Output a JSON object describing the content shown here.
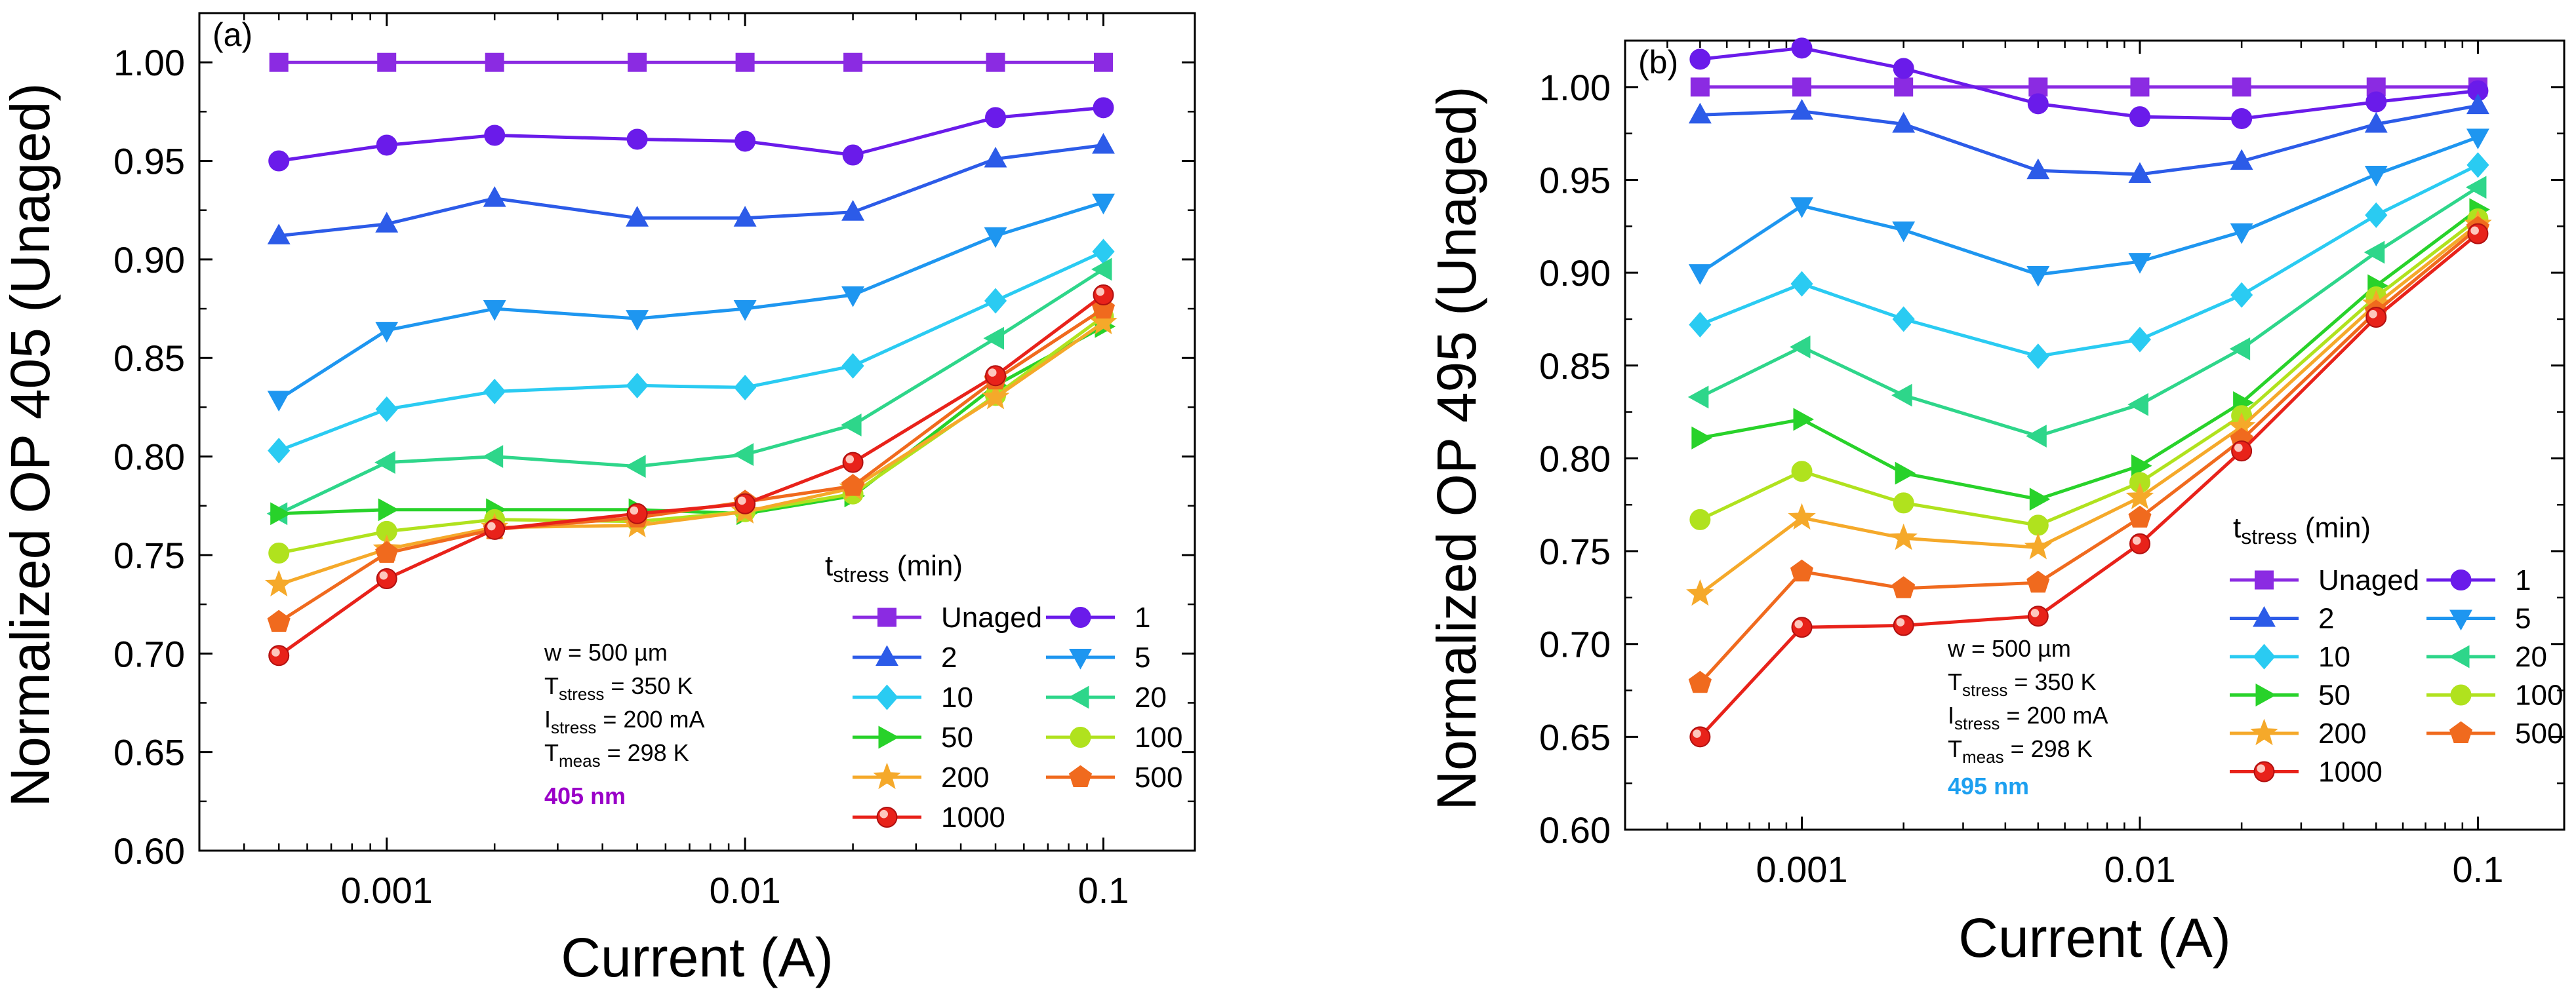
{
  "chart_data": [
    {
      "panel_label": "(a)",
      "type": "line",
      "xscale": "log",
      "xlim": [
        0.0003,
        0.18
      ],
      "ylim": [
        0.6,
        1.025
      ],
      "xlabel": "Current (A)",
      "ylabel": "Normalized OP 405 (Unaged)",
      "x_ticks": [
        0.001,
        0.01,
        0.1
      ],
      "x_tick_labels": [
        "0.001",
        "0.01",
        "0.1"
      ],
      "y_ticks": [
        0.6,
        0.65,
        0.7,
        0.75,
        0.8,
        0.85,
        0.9,
        0.95,
        1.0
      ],
      "y_tick_labels": [
        "0.60",
        "0.65",
        "0.70",
        "0.75",
        "0.80",
        "0.85",
        "0.90",
        "0.95",
        "1.00"
      ],
      "x": [
        0.0005,
        0.001,
        0.002,
        0.005,
        0.01,
        0.02,
        0.05,
        0.1
      ],
      "legend_title_main": "t",
      "legend_title_sub": "stress",
      "legend_title_unit": " (min)",
      "legend_position": "bottom-right",
      "annotation_lines": [
        {
          "main": "w = 500 µm",
          "sub": "",
          "rest": ""
        },
        {
          "main": "T",
          "sub": "stress",
          "rest": " = 350 K"
        },
        {
          "main": "I",
          "sub": "stress",
          "rest": " = 200 mA"
        },
        {
          "main": "T",
          "sub": "meas",
          "rest": " = 298 K"
        }
      ],
      "wavelength_label": "405 nm",
      "wavelength_color": "#9A00C8",
      "series": [
        {
          "name": "Unaged",
          "color": "#8B2BE2",
          "marker": "square",
          "values": [
            1.0,
            1.0,
            1.0,
            1.0,
            1.0,
            1.0,
            1.0,
            1.0
          ]
        },
        {
          "name": "1",
          "color": "#6A1BEA",
          "marker": "circle",
          "values": [
            0.95,
            0.958,
            0.963,
            0.961,
            0.96,
            0.953,
            0.972,
            0.977
          ]
        },
        {
          "name": "2",
          "color": "#2C5BE8",
          "marker": "triangle-up",
          "values": [
            0.912,
            0.918,
            0.931,
            0.921,
            0.921,
            0.924,
            0.951,
            0.958
          ]
        },
        {
          "name": "5",
          "color": "#1E96F0",
          "marker": "triangle-down",
          "values": [
            0.829,
            0.864,
            0.875,
            0.87,
            0.875,
            0.882,
            0.912,
            0.929
          ]
        },
        {
          "name": "10",
          "color": "#2ACBF2",
          "marker": "diamond",
          "values": [
            0.803,
            0.824,
            0.833,
            0.836,
            0.835,
            0.846,
            0.879,
            0.904
          ]
        },
        {
          "name": "20",
          "color": "#2ED68A",
          "marker": "triangle-left",
          "values": [
            0.771,
            0.797,
            0.8,
            0.795,
            0.801,
            0.816,
            0.86,
            0.895
          ]
        },
        {
          "name": "50",
          "color": "#28D22A",
          "marker": "triangle-right",
          "values": [
            0.771,
            0.773,
            0.773,
            0.773,
            0.771,
            0.78,
            0.836,
            0.866
          ]
        },
        {
          "name": "100",
          "color": "#B0E21E",
          "marker": "circle",
          "values": [
            0.751,
            0.762,
            0.768,
            0.767,
            0.772,
            0.781,
            0.831,
            0.871
          ]
        },
        {
          "name": "200",
          "color": "#F5A92A",
          "marker": "star",
          "values": [
            0.735,
            0.753,
            0.764,
            0.765,
            0.772,
            0.784,
            0.83,
            0.868
          ]
        },
        {
          "name": "500",
          "color": "#F06A1E",
          "marker": "pentagon",
          "values": [
            0.716,
            0.751,
            0.763,
            0.769,
            0.777,
            0.785,
            0.839,
            0.875
          ]
        },
        {
          "name": "1000",
          "color": "#E8221A",
          "marker": "ball",
          "values": [
            0.699,
            0.738,
            0.763,
            0.771,
            0.776,
            0.797,
            0.841,
            0.882
          ]
        }
      ]
    },
    {
      "panel_label": "(b)",
      "type": "line",
      "xscale": "log",
      "xlim": [
        0.0003,
        0.18
      ],
      "ylim": [
        0.6,
        1.025
      ],
      "xlabel": "Current (A)",
      "ylabel": "Normalized OP 495 (Unaged)",
      "x_ticks": [
        0.001,
        0.01,
        0.1
      ],
      "x_tick_labels": [
        "0.001",
        "0.01",
        "0.1"
      ],
      "y_ticks": [
        0.6,
        0.65,
        0.7,
        0.75,
        0.8,
        0.85,
        0.9,
        0.95,
        1.0
      ],
      "y_tick_labels": [
        "0.60",
        "0.65",
        "0.70",
        "0.75",
        "0.80",
        "0.85",
        "0.90",
        "0.95",
        "1.00"
      ],
      "x": [
        0.0005,
        0.001,
        0.002,
        0.005,
        0.01,
        0.02,
        0.05,
        0.1
      ],
      "legend_title_main": "t",
      "legend_title_sub": "stress",
      "legend_title_unit": " (min)",
      "legend_position": "right",
      "annotation_lines": [
        {
          "main": "w = 500 µm",
          "sub": "",
          "rest": ""
        },
        {
          "main": "T",
          "sub": "stress",
          "rest": " = 350 K"
        },
        {
          "main": "I",
          "sub": "stress",
          "rest": " = 200 mA"
        },
        {
          "main": "T",
          "sub": "meas",
          "rest": " = 298 K"
        }
      ],
      "wavelength_label": "495 nm",
      "wavelength_color": "#1EA0F0",
      "series": [
        {
          "name": "Unaged",
          "color": "#8B2BE2",
          "marker": "square",
          "values": [
            1.0,
            1.0,
            1.0,
            1.0,
            1.0,
            1.0,
            1.0,
            1.0
          ]
        },
        {
          "name": "1",
          "color": "#6A1BEA",
          "marker": "circle",
          "values": [
            1.015,
            1.021,
            1.01,
            0.991,
            0.984,
            0.983,
            0.992,
            0.998
          ]
        },
        {
          "name": "2",
          "color": "#2C5BE8",
          "marker": "triangle-up",
          "values": [
            0.985,
            0.987,
            0.98,
            0.955,
            0.953,
            0.96,
            0.98,
            0.99
          ]
        },
        {
          "name": "5",
          "color": "#1E96F0",
          "marker": "triangle-down",
          "values": [
            0.9,
            0.936,
            0.923,
            0.899,
            0.906,
            0.922,
            0.953,
            0.973
          ]
        },
        {
          "name": "10",
          "color": "#2ACBF2",
          "marker": "diamond",
          "values": [
            0.872,
            0.894,
            0.875,
            0.855,
            0.864,
            0.888,
            0.931,
            0.958
          ]
        },
        {
          "name": "20",
          "color": "#2ED68A",
          "marker": "triangle-left",
          "values": [
            0.833,
            0.86,
            0.834,
            0.812,
            0.829,
            0.859,
            0.911,
            0.946
          ]
        },
        {
          "name": "50",
          "color": "#28D22A",
          "marker": "triangle-right",
          "values": [
            0.811,
            0.821,
            0.792,
            0.778,
            0.796,
            0.83,
            0.893,
            0.934
          ]
        },
        {
          "name": "100",
          "color": "#B0E21E",
          "marker": "circle",
          "values": [
            0.767,
            0.793,
            0.776,
            0.764,
            0.787,
            0.823,
            0.887,
            0.929
          ]
        },
        {
          "name": "200",
          "color": "#F5A92A",
          "marker": "star",
          "values": [
            0.727,
            0.768,
            0.757,
            0.752,
            0.779,
            0.817,
            0.883,
            0.926
          ]
        },
        {
          "name": "500",
          "color": "#F06A1E",
          "marker": "pentagon",
          "values": [
            0.679,
            0.739,
            0.73,
            0.733,
            0.768,
            0.81,
            0.879,
            0.924
          ]
        },
        {
          "name": "1000",
          "color": "#E8221A",
          "marker": "ball",
          "values": [
            0.65,
            0.709,
            0.71,
            0.715,
            0.754,
            0.804,
            0.876,
            0.921
          ]
        }
      ]
    }
  ]
}
